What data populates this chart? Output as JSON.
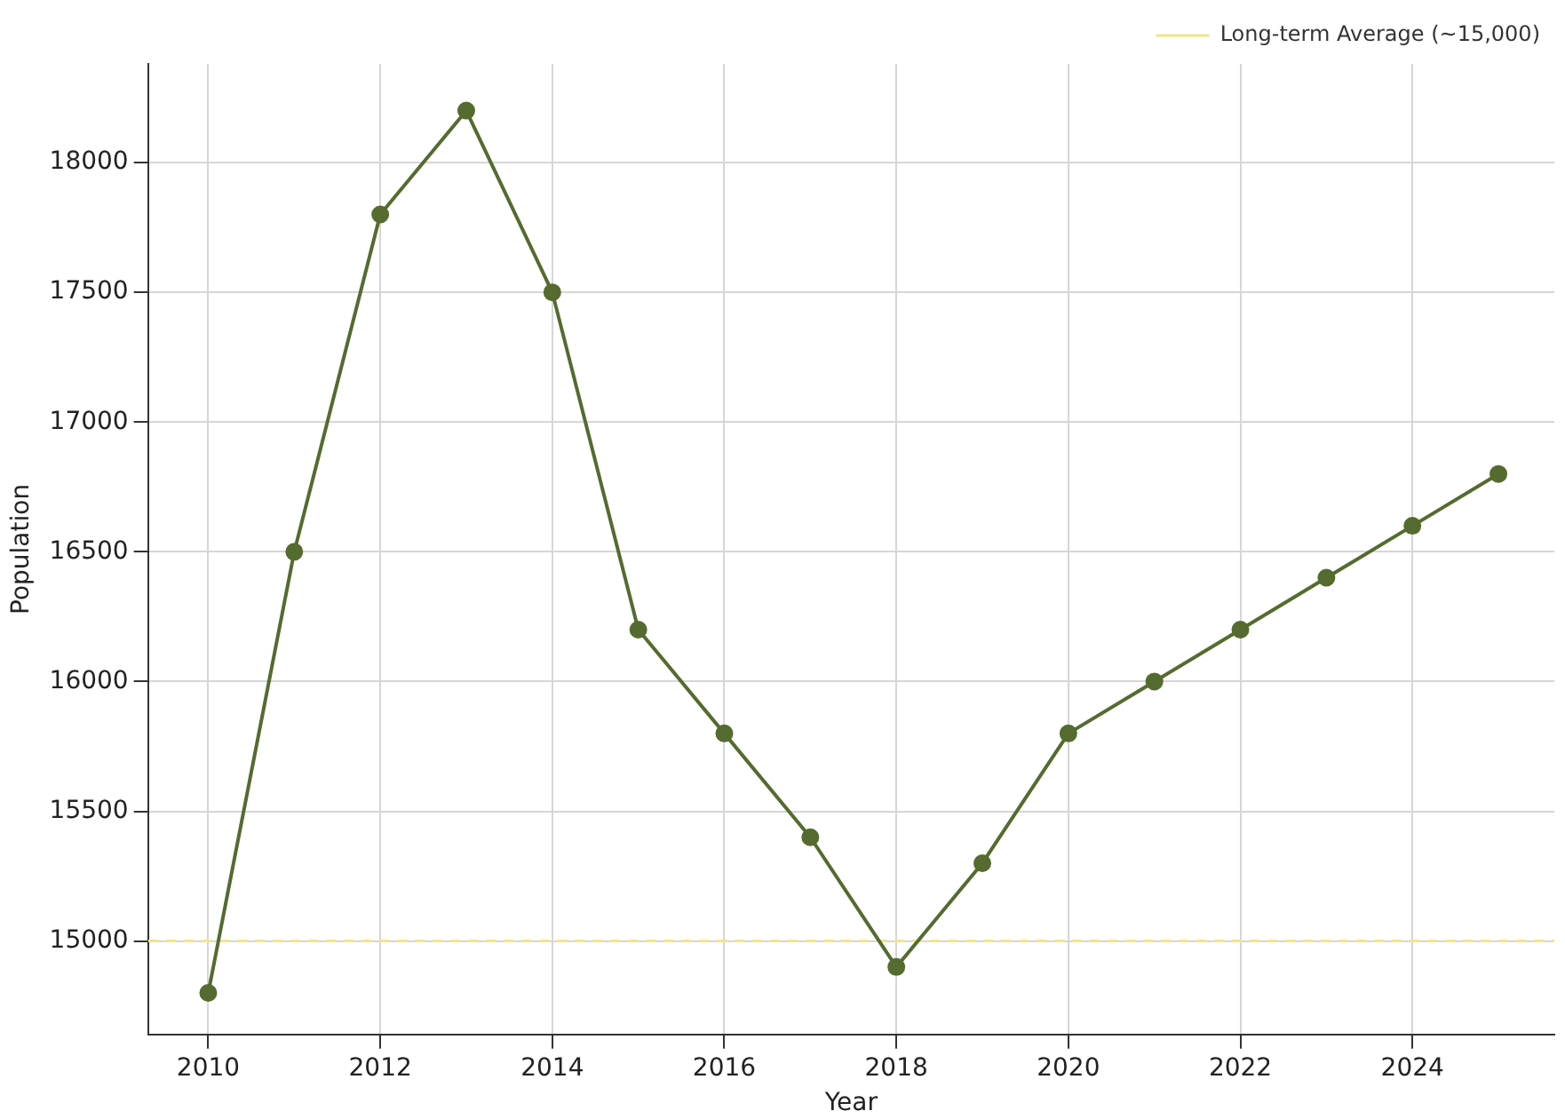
{
  "chart_data": {
    "type": "line",
    "xlabel": "Year",
    "ylabel": "Population",
    "x": [
      2010,
      2011,
      2012,
      2013,
      2014,
      2015,
      2016,
      2017,
      2018,
      2019,
      2020,
      2021,
      2022,
      2023,
      2024,
      2025
    ],
    "series": [
      {
        "color": "#556b2f",
        "values": [
          14800,
          16500,
          17800,
          18200,
          17500,
          16200,
          15800,
          15400,
          14900,
          15300,
          15800,
          16000,
          16200,
          16400,
          16600,
          16800
        ]
      }
    ],
    "xlim": [
      2009.3,
      2025.65
    ],
    "xticks": [
      2010,
      2012,
      2014,
      2016,
      2018,
      2020,
      2022,
      2024
    ],
    "ylim": [
      14640,
      18380
    ],
    "yticks": [
      15000,
      15500,
      16000,
      16500,
      17000,
      17500,
      18000
    ],
    "ref_lines": [
      {
        "axis": "y",
        "value": 15000,
        "label": "Long-term Average (~15,000)",
        "color": "#f0e68c",
        "line_style": "dashed"
      }
    ],
    "grid": true,
    "legend": "top right",
    "marker": "circle",
    "line_style": "solid"
  }
}
